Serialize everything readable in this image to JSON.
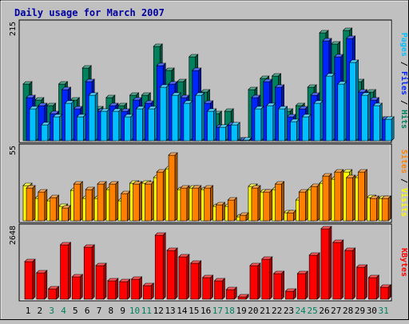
{
  "title": "Daily usage for March 2007",
  "colors": {
    "background": "#c0c0c0",
    "title": "#0000a0",
    "hits": "#00805c",
    "files": "#0024ff",
    "pages": "#00c0ff",
    "visits": "#ffff00",
    "sites": "#ff8000",
    "kbytes": "#ff0000",
    "weekend_label": "#00805c",
    "weekday_label": "#000000"
  },
  "chart_data": [
    {
      "type": "bar",
      "name": "hits-files-pages",
      "categories": [
        "1",
        "2",
        "3",
        "4",
        "5",
        "6",
        "7",
        "8",
        "9",
        "10",
        "11",
        "12",
        "13",
        "14",
        "15",
        "16",
        "17",
        "18",
        "19",
        "20",
        "21",
        "22",
        "23",
        "24",
        "25",
        "26",
        "27",
        "28",
        "29",
        "30",
        "31"
      ],
      "weekend_days": [
        "3",
        "4",
        "10",
        "11",
        "17",
        "18",
        "24",
        "25",
        "31"
      ],
      "ymax_label": "215",
      "ylim": [
        0,
        215
      ],
      "legend": [
        {
          "key": "pages",
          "text": "Pages"
        },
        {
          "key": "sep",
          "text": " / "
        },
        {
          "key": "files",
          "text": "Files"
        },
        {
          "key": "sep",
          "text": " / "
        },
        {
          "key": "hits",
          "text": "Hits"
        }
      ],
      "series": [
        {
          "name": "Hits",
          "values": [
            105,
            75,
            65,
            105,
            75,
            135,
            60,
            80,
            65,
            85,
            85,
            175,
            130,
            110,
            155,
            90,
            50,
            55,
            0,
            95,
            115,
            120,
            55,
            65,
            100,
            200,
            180,
            205,
            110,
            90,
            40
          ]
        },
        {
          "name": "Files",
          "values": [
            80,
            65,
            50,
            95,
            60,
            110,
            55,
            65,
            55,
            75,
            70,
            140,
            105,
            80,
            130,
            70,
            25,
            30,
            0,
            80,
            110,
            100,
            45,
            60,
            85,
            185,
            155,
            190,
            90,
            75,
            40
          ]
        },
        {
          "name": "Pages",
          "values": [
            60,
            30,
            45,
            70,
            45,
            85,
            55,
            55,
            45,
            60,
            60,
            100,
            85,
            70,
            85,
            55,
            25,
            30,
            0,
            60,
            65,
            60,
            35,
            45,
            70,
            120,
            105,
            145,
            85,
            65,
            40
          ]
        }
      ]
    },
    {
      "type": "bar",
      "name": "visits-sites",
      "categories": [
        "1",
        "2",
        "3",
        "4",
        "5",
        "6",
        "7",
        "8",
        "9",
        "10",
        "11",
        "12",
        "13",
        "14",
        "15",
        "16",
        "17",
        "18",
        "19",
        "20",
        "21",
        "22",
        "23",
        "24",
        "25",
        "26",
        "27",
        "28",
        "29",
        "30",
        "31"
      ],
      "ymax_label": "55",
      "ylim": [
        0,
        55
      ],
      "legend": [
        {
          "key": "sites",
          "text": "Sites"
        },
        {
          "key": "sep",
          "text": " / "
        },
        {
          "key": "visits",
          "text": "Visits"
        }
      ],
      "series": [
        {
          "name": "Visits",
          "values": [
            27,
            17,
            15,
            11,
            23,
            17,
            17,
            24,
            15,
            29,
            29,
            33,
            40,
            24,
            25,
            24,
            11,
            11,
            3,
            26,
            22,
            24,
            6,
            16,
            24,
            29,
            32,
            37,
            33,
            18,
            17
          ]
        },
        {
          "name": "Sites",
          "values": [
            25,
            22,
            18,
            10,
            28,
            24,
            28,
            28,
            21,
            28,
            28,
            37,
            50,
            25,
            25,
            25,
            12,
            16,
            4,
            25,
            22,
            28,
            6,
            22,
            26,
            34,
            37,
            33,
            37,
            17,
            17
          ]
        }
      ]
    },
    {
      "type": "bar",
      "name": "kbytes",
      "categories": [
        "1",
        "2",
        "3",
        "4",
        "5",
        "6",
        "7",
        "8",
        "9",
        "10",
        "11",
        "12",
        "13",
        "14",
        "15",
        "16",
        "17",
        "18",
        "19",
        "20",
        "21",
        "22",
        "23",
        "24",
        "25",
        "26",
        "27",
        "28",
        "29",
        "30",
        "31"
      ],
      "ymax_label": "2648",
      "ylim": [
        0,
        2648
      ],
      "legend": [
        {
          "key": "kbytes",
          "text": "KBytes"
        }
      ],
      "series": [
        {
          "name": "KBytes",
          "values": [
            1400,
            1000,
            400,
            2050,
            850,
            1950,
            1250,
            700,
            650,
            750,
            500,
            2400,
            1850,
            1600,
            1350,
            800,
            700,
            350,
            100,
            1250,
            1500,
            950,
            300,
            950,
            1650,
            2648,
            2150,
            1850,
            1200,
            800,
            450
          ]
        }
      ]
    }
  ]
}
